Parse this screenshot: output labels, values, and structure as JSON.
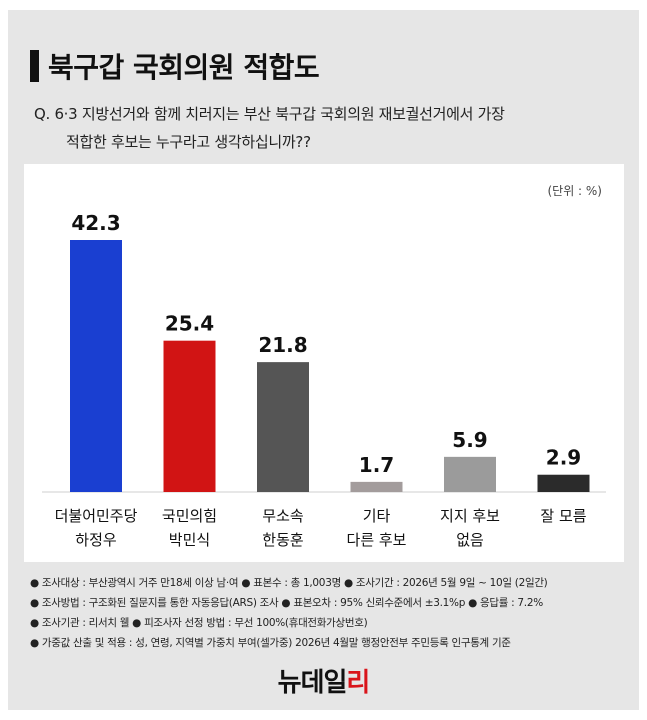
{
  "title": "북구갑 국회의원 적합도",
  "question": {
    "line1": "Q. 6·3 지방선거와 함께 치러지는 부산 북구갑 국회의원 재보궐선거에서 가장",
    "line2": "적합한 후보는 누구라고 생각하십니까??"
  },
  "unit": "(단위 : %)",
  "chart_data": {
    "type": "bar",
    "categories": [
      [
        "더불어민주당",
        "하정우"
      ],
      [
        "국민의힘",
        "박민식"
      ],
      [
        "무소속",
        "한동훈"
      ],
      [
        "기타",
        "다른 후보"
      ],
      [
        "지지 후보",
        "없음"
      ],
      [
        "잘 모름"
      ]
    ],
    "values": [
      42.3,
      25.4,
      21.8,
      1.7,
      5.9,
      2.9
    ],
    "value_labels": [
      "42.3",
      "25.4",
      "21.8",
      "1.7",
      "5.9",
      "2.9"
    ],
    "colors": [
      "#1a3fd1",
      "#d11414",
      "#555555",
      "#a39c9c",
      "#9b9b9b",
      "#2b2b2b"
    ],
    "ylim": [
      0,
      42.3
    ],
    "grid": false,
    "legend": "none"
  },
  "notes": [
    "● 조사대상 : 부산광역시 거주 만18세 이상 남·여  ● 표본수 : 총 1,003명  ● 조사기간 : 2026년 5월 9일 ~ 10일 (2일간)",
    "● 조사방법 : 구조화된 질문지를 통한 자동응답(ARS) 조사  ● 표본오차 : 95% 신뢰수준에서 ±3.1%p  ● 응답률 : 7.2%",
    "● 조사기관 : 리서치 웰  ● 피조사자 선정 방법 : 무선 100%(휴대전화가상번호)",
    "● 가중값 산출 및 적용 : 성, 연령, 지역별 가중치 부여(셀가중) 2026년 4월말 행정안전부 주민등록 인구통계 기준"
  ],
  "logo": {
    "main": "뉴데일",
    "accent": "리"
  }
}
